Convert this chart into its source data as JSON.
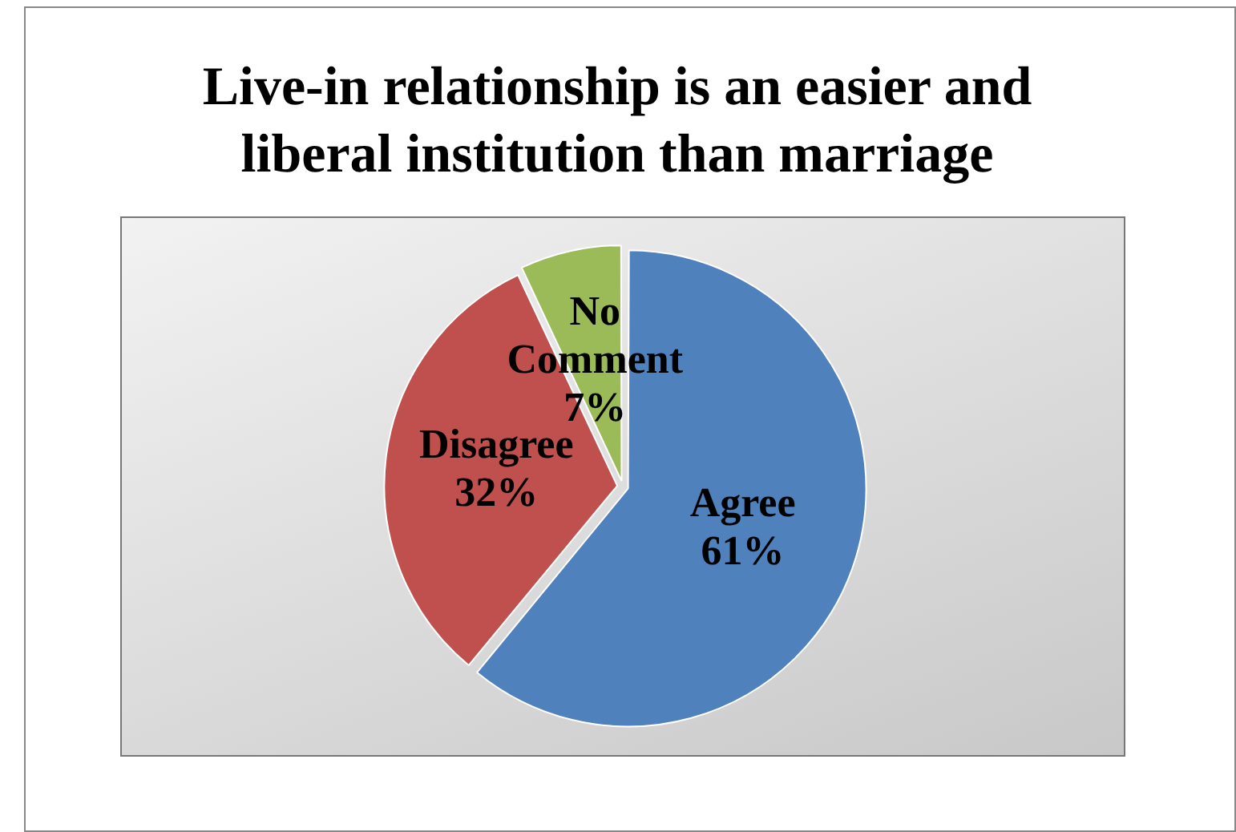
{
  "chart_data": {
    "type": "pie",
    "title": "Live-in relationship is an easier and liberal institution than marriage",
    "categories": [
      "Agree",
      "Disagree",
      "No Comment"
    ],
    "values": [
      61,
      32,
      7
    ],
    "colors": [
      "#4f81bd",
      "#c0504d",
      "#9bbb59"
    ],
    "value_labels": [
      "61%",
      "32%",
      "7%"
    ],
    "legend": false
  }
}
